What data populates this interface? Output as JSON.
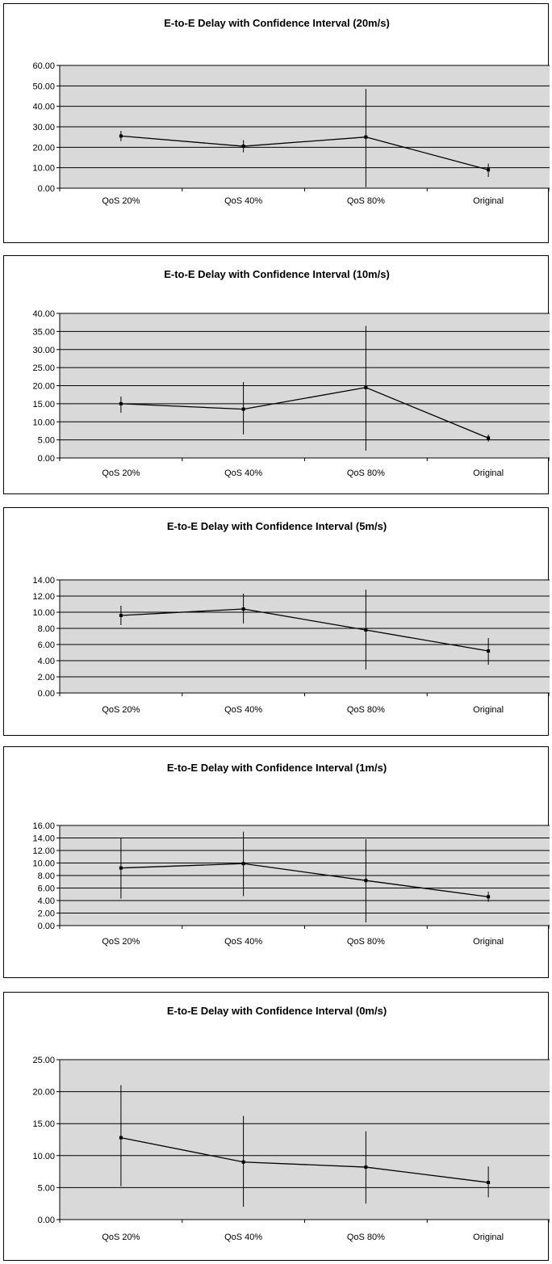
{
  "chart_data": [
    {
      "type": "line",
      "title": "E-to-E Delay with Confidence Interval (20m/s)",
      "categories": [
        "QoS 20%",
        "QoS 40%",
        "QoS 80%",
        "Original"
      ],
      "values": [
        25.5,
        20.5,
        25.0,
        9.0
      ],
      "ci_low": [
        23.0,
        17.5,
        0.5,
        5.5
      ],
      "ci_high": [
        28.0,
        23.5,
        48.5,
        12.0
      ],
      "ylim": [
        0,
        60
      ],
      "yticks": [
        "0.00",
        "10.00",
        "20.00",
        "30.00",
        "40.00",
        "50.00",
        "60.00"
      ],
      "grid": true,
      "legend": "none",
      "line_color": "#000000",
      "plot_background": "#d9d9d9"
    },
    {
      "type": "line",
      "title": "E-to-E Delay with Confidence Interval (10m/s)",
      "categories": [
        "QoS 20%",
        "QoS 40%",
        "QoS 80%",
        "Original"
      ],
      "values": [
        15.0,
        13.5,
        19.5,
        5.5
      ],
      "ci_low": [
        12.5,
        6.5,
        2.0,
        4.5
      ],
      "ci_high": [
        17.0,
        21.0,
        36.5,
        6.5
      ],
      "ylim": [
        0,
        40
      ],
      "yticks": [
        "0.00",
        "5.00",
        "10.00",
        "15.00",
        "20.00",
        "25.00",
        "30.00",
        "35.00",
        "40.00"
      ],
      "grid": true,
      "legend": "none",
      "line_color": "#000000",
      "plot_background": "#d9d9d9"
    },
    {
      "type": "line",
      "title": "E-to-E Delay with Confidence Interval (5m/s)",
      "categories": [
        "QoS 20%",
        "QoS 40%",
        "QoS 80%",
        "Original"
      ],
      "values": [
        9.6,
        10.4,
        7.8,
        5.2
      ],
      "ci_low": [
        8.4,
        8.6,
        2.9,
        3.5
      ],
      "ci_high": [
        10.8,
        12.3,
        12.8,
        6.8
      ],
      "ylim": [
        0,
        14
      ],
      "yticks": [
        "0.00",
        "2.00",
        "4.00",
        "6.00",
        "8.00",
        "10.00",
        "12.00",
        "14.00"
      ],
      "grid": true,
      "legend": "none",
      "line_color": "#000000",
      "plot_background": "#d9d9d9"
    },
    {
      "type": "line",
      "title": "E-to-E Delay with Confidence Interval (1m/s)",
      "categories": [
        "QoS 20%",
        "QoS 40%",
        "QoS 80%",
        "Original"
      ],
      "values": [
        9.2,
        9.9,
        7.2,
        4.6
      ],
      "ci_low": [
        4.3,
        4.7,
        0.5,
        3.8
      ],
      "ci_high": [
        14.0,
        15.0,
        13.8,
        5.4
      ],
      "ylim": [
        0,
        16
      ],
      "yticks": [
        "0.00",
        "2.00",
        "4.00",
        "6.00",
        "8.00",
        "10.00",
        "12.00",
        "14.00",
        "16.00"
      ],
      "grid": true,
      "legend": "none",
      "line_color": "#000000",
      "plot_background": "#d9d9d9"
    },
    {
      "type": "line",
      "title": "E-to-E Delay with Confidence Interval (0m/s)",
      "categories": [
        "QoS 20%",
        "QoS 40%",
        "QoS 80%",
        "Original"
      ],
      "values": [
        12.8,
        9.0,
        8.2,
        5.8
      ],
      "ci_low": [
        5.2,
        2.0,
        2.5,
        3.5
      ],
      "ci_high": [
        21.0,
        16.2,
        13.8,
        8.3
      ],
      "ylim": [
        0,
        25
      ],
      "yticks": [
        "0.00",
        "5.00",
        "10.00",
        "15.00",
        "20.00",
        "25.00"
      ],
      "grid": true,
      "legend": "none",
      "line_color": "#000000",
      "plot_background": "#d9d9d9"
    }
  ]
}
